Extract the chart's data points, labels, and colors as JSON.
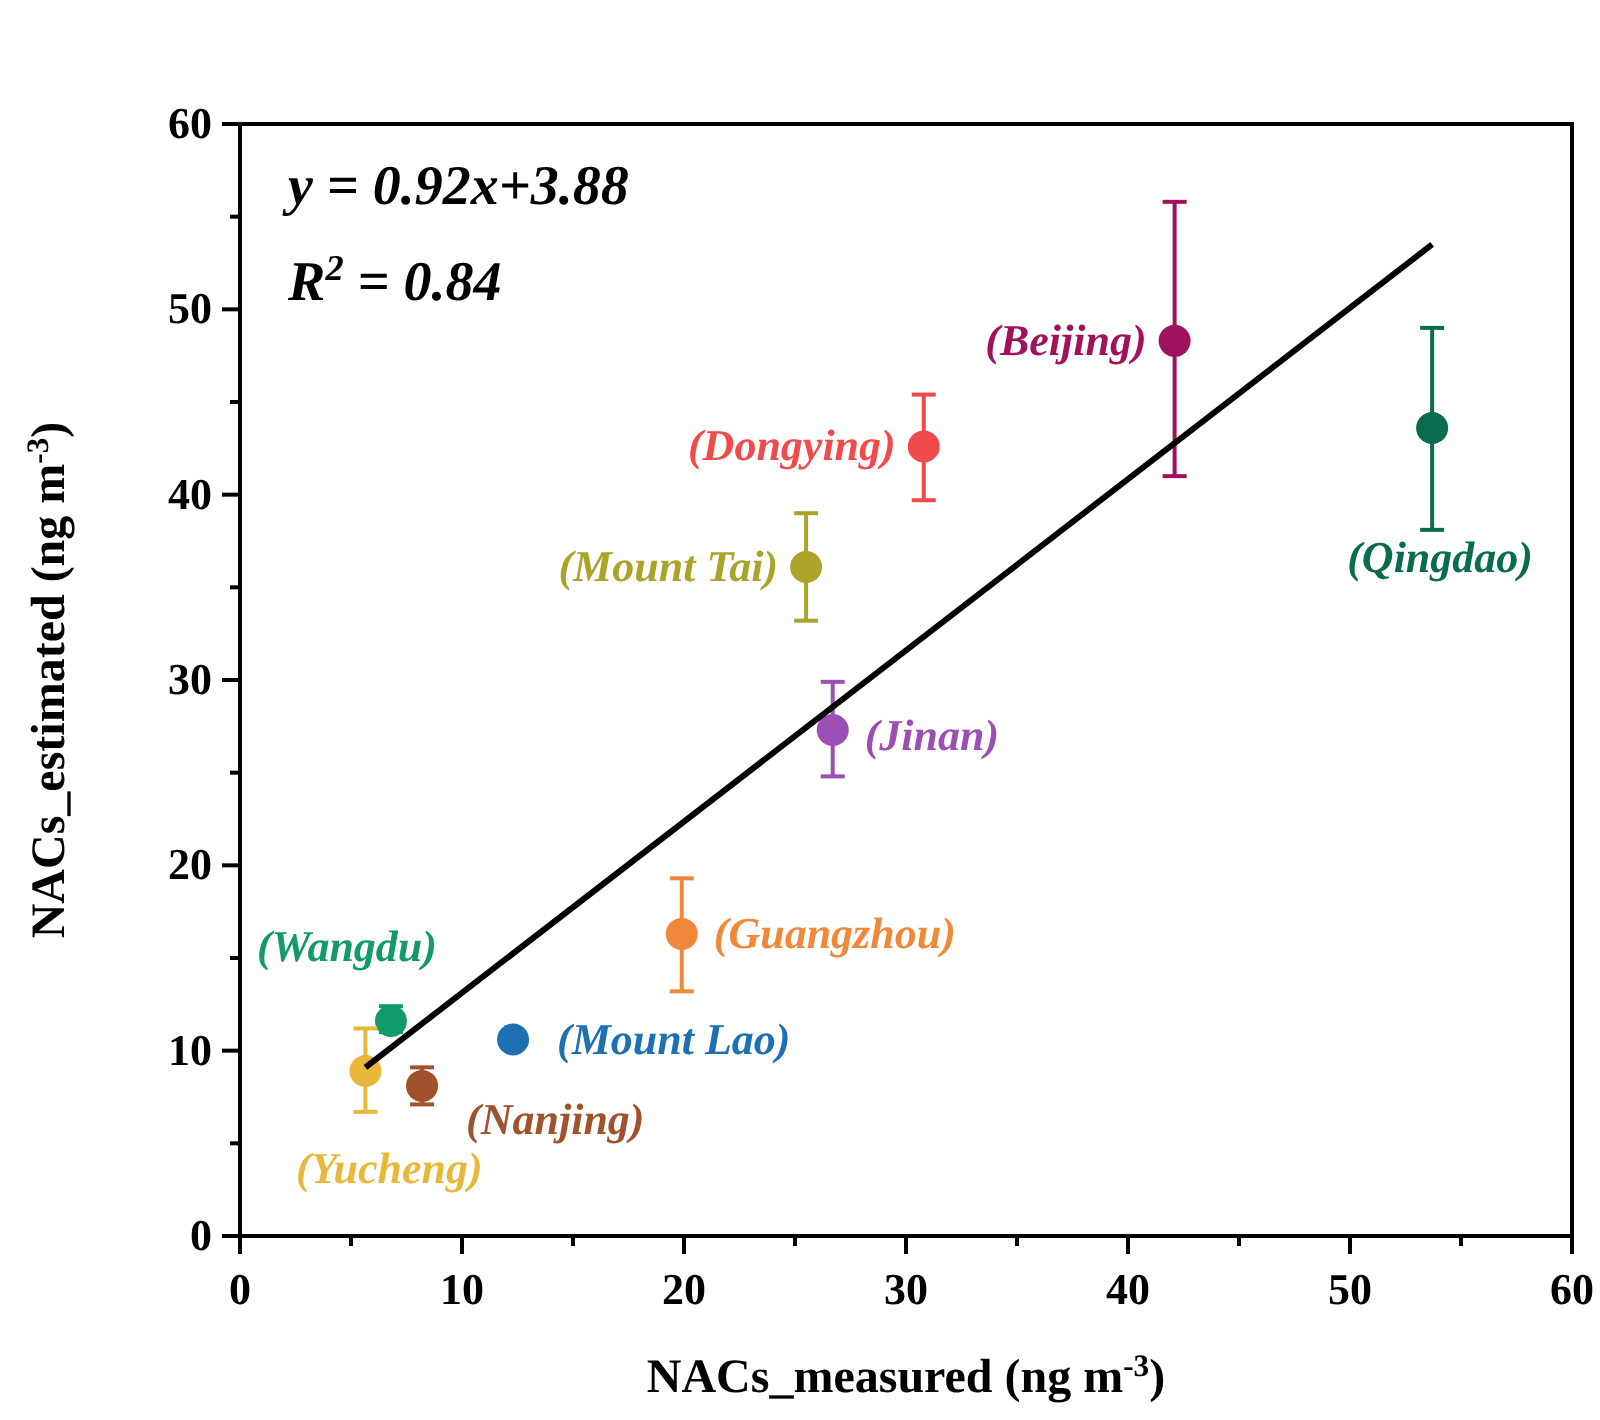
{
  "chart_data": {
    "type": "scatter",
    "xlabel": "NACs_measured (ng m$^{-3}$)",
    "ylabel": "NACs_estimated (ng m$^{-3}$)",
    "xlim": [
      0,
      60
    ],
    "ylim": [
      0,
      60
    ],
    "xticks": [
      0,
      {
        "value": 5,
        "label": null
      },
      10,
      {
        "value": 15,
        "label": null
      },
      20,
      {
        "value": 25,
        "label": null
      },
      30,
      {
        "value": 35,
        "label": null
      },
      40,
      {
        "value": 45,
        "label": null
      },
      50,
      {
        "value": 55,
        "label": null
      },
      60
    ],
    "yticks": [
      0,
      {
        "value": 5,
        "label": null
      },
      10,
      {
        "value": 15,
        "label": null
      },
      20,
      {
        "value": 25,
        "label": null
      },
      30,
      {
        "value": 35,
        "label": null
      },
      40,
      {
        "value": 45,
        "label": null
      },
      50,
      {
        "value": 55,
        "label": null
      },
      60
    ],
    "grid": false,
    "marker": "circle",
    "annotations": [
      "y = 0.92x+3.88",
      "R$^{2}$ = 0.84"
    ],
    "series": [
      {
        "name": "(Beijing)",
        "color": "#a0125e",
        "x": [
          42.1
        ],
        "values": [
          48.3
        ],
        "errors": [
          [
            41.0,
            55.8
          ]
        ]
      },
      {
        "name": "(Qingdao)",
        "color": "#0b6b4e",
        "x": [
          53.7
        ],
        "values": [
          43.6
        ],
        "errors": [
          [
            38.1,
            49.0
          ]
        ]
      },
      {
        "name": "(Dongying)",
        "color": "#f04a4a",
        "x": [
          30.8
        ],
        "values": [
          42.6
        ],
        "errors": [
          [
            39.7,
            45.4
          ]
        ]
      },
      {
        "name": "(Mount Tai)",
        "color": "#aaa428",
        "x": [
          25.5
        ],
        "values": [
          36.1
        ],
        "errors": [
          [
            33.2,
            39.0
          ]
        ]
      },
      {
        "name": "(Jinan)",
        "color": "#9b4fb5",
        "x": [
          26.7
        ],
        "values": [
          27.3
        ],
        "errors": [
          [
            24.8,
            29.9
          ]
        ]
      },
      {
        "name": "(Guangzhou)",
        "color": "#f0883a",
        "x": [
          19.9
        ],
        "values": [
          16.3
        ],
        "errors": [
          [
            13.2,
            19.3
          ]
        ]
      },
      {
        "name": "(Wangdu)",
        "color": "#139a6a",
        "x": [
          6.8
        ],
        "values": [
          11.6
        ],
        "errors": [
          [
            11.0,
            12.4
          ]
        ]
      },
      {
        "name": "(Mount Lao)",
        "color": "#1f6fb5",
        "x": [
          12.3
        ],
        "values": [
          10.6
        ]
      },
      {
        "name": "(Yucheng)",
        "color": "#e8b83a",
        "x": [
          5.65
        ],
        "values": [
          8.9
        ],
        "errors": [
          [
            6.7,
            11.2
          ]
        ]
      },
      {
        "name": "(Nanjing)",
        "color": "#a0522d",
        "x": [
          8.2
        ],
        "values": [
          8.1
        ],
        "errors": [
          [
            7.1,
            9.1
          ]
        ]
      },
      {
        "type": "line",
        "color": "#000000",
        "marker": "none",
        "x": [
          5.65,
          53.7
        ],
        "values": [
          9.1,
          53.5
        ]
      }
    ]
  }
}
